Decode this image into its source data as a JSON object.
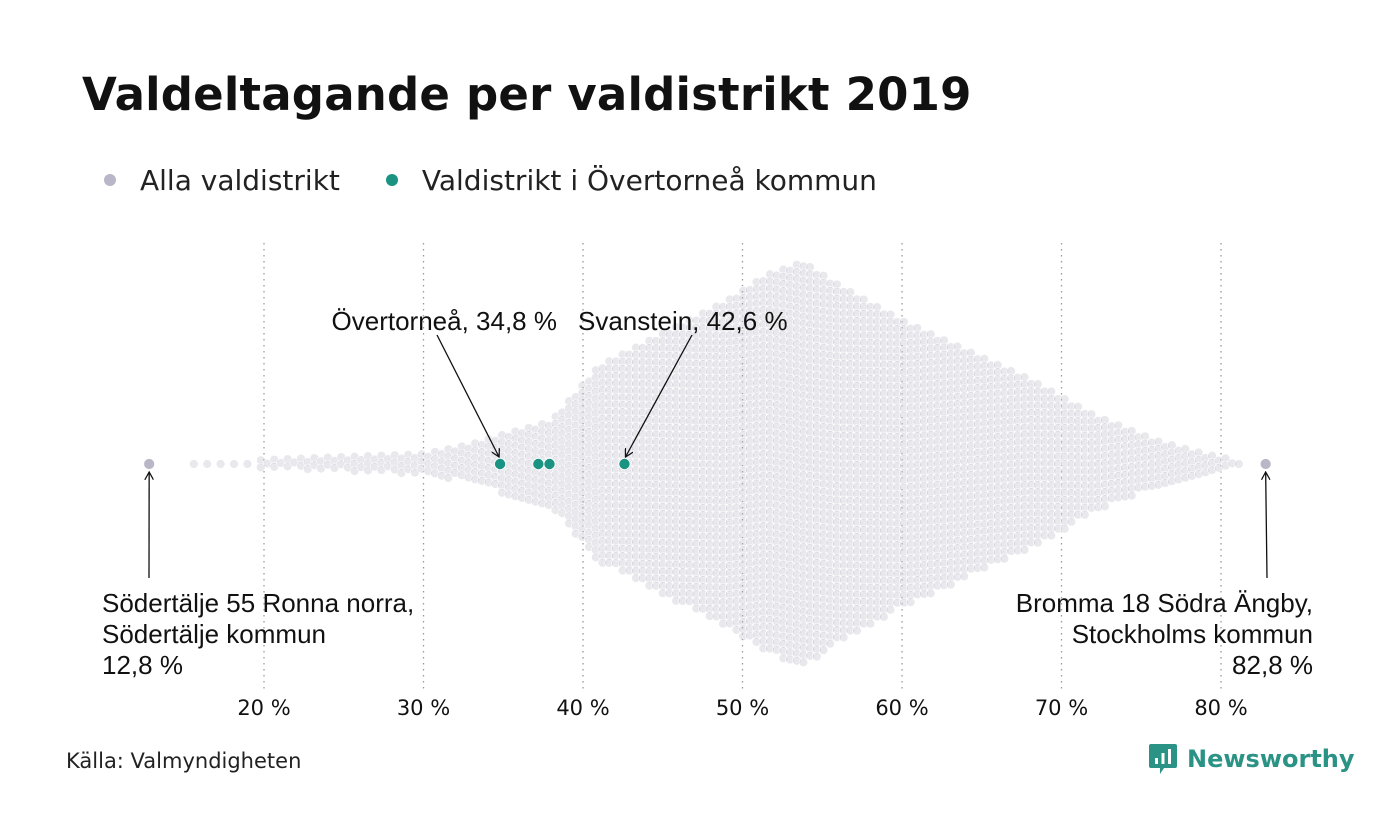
{
  "title": "Valdeltagande per valdistrikt 2019",
  "legend": [
    {
      "label": "Alla valdistrikt",
      "color": "#b9b6c8"
    },
    {
      "label": "Valdistrikt i Övertorneå kommun",
      "color": "#1a9382"
    }
  ],
  "source": "Källa: Valmyndigheten",
  "brand": {
    "name": "Newsworthy",
    "icon": "newsworthy-logo-icon",
    "color": "#2a9385"
  },
  "chart_data": {
    "type": "scatter",
    "title": "Valdeltagande per valdistrikt 2019",
    "xlabel": "",
    "ylabel": "",
    "x_unit": "%",
    "xlim": [
      12,
      85
    ],
    "x_ticks": [
      20,
      30,
      40,
      50,
      60,
      70,
      80
    ],
    "x_tick_labels": [
      "20 %",
      "30 %",
      "40 %",
      "50 %",
      "60 %",
      "70 %",
      "80 %"
    ],
    "grid": "vertical dotted",
    "legend_position": "top-left",
    "background_series": {
      "name": "Alla valdistrikt",
      "color": "#b9b6c8",
      "distribution_extent": [
        [
          16,
          1
        ],
        [
          19,
          1
        ],
        [
          24,
          2
        ],
        [
          30,
          3
        ],
        [
          33,
          6
        ],
        [
          35,
          9
        ],
        [
          38,
          13
        ],
        [
          41,
          30
        ],
        [
          45,
          40
        ],
        [
          49,
          50
        ],
        [
          51.5,
          58
        ],
        [
          53.8,
          62
        ],
        [
          56,
          55
        ],
        [
          60,
          44
        ],
        [
          64,
          35
        ],
        [
          68,
          26
        ],
        [
          72,
          15
        ],
        [
          76,
          7
        ],
        [
          79,
          3
        ],
        [
          81,
          1
        ],
        [
          82.5,
          1
        ]
      ]
    },
    "series": [
      {
        "name": "Valdistrikt i Övertorneå kommun",
        "color": "#1a9382",
        "values": [
          34.8,
          37.2,
          37.9,
          42.6
        ]
      }
    ],
    "annotations": [
      {
        "label": "Övertorneå, 34,8 %",
        "x": 34.8
      },
      {
        "label": "Svanstein, 42,6 %",
        "x": 42.6
      },
      {
        "lines": [
          "Södertälje 55 Ronna norra,",
          "Södertälje kommun",
          "12,8 %"
        ],
        "x": 12.8
      },
      {
        "lines": [
          "Bromma 18 Södra Ängby,",
          "Stockholms kommun",
          "82,8 %"
        ],
        "x": 82.8
      }
    ]
  }
}
